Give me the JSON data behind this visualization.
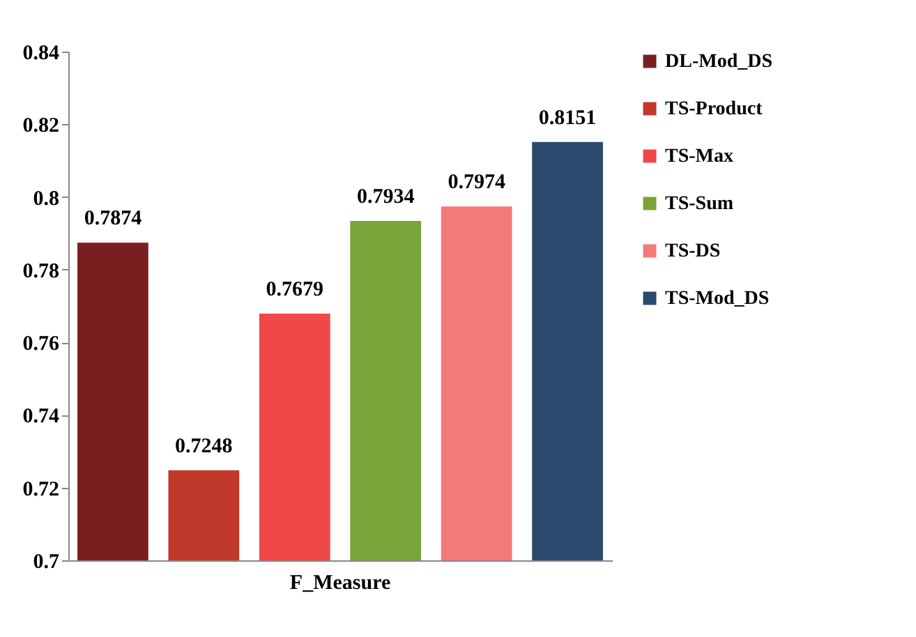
{
  "chart_data": {
    "type": "bar",
    "categories": [
      "F_Measure"
    ],
    "series": [
      {
        "name": "DL-Mod_DS",
        "color": "#7a1f1f",
        "values": [
          0.7874
        ]
      },
      {
        "name": "TS-Product",
        "color": "#c0392b",
        "values": [
          0.7248
        ]
      },
      {
        "name": "TS-Max",
        "color": "#f04848",
        "values": [
          0.7679
        ]
      },
      {
        "name": "TS-Sum",
        "color": "#7aa33a",
        "values": [
          0.7934
        ]
      },
      {
        "name": "TS-DS",
        "color": "#f47a7a",
        "values": [
          0.7974
        ]
      },
      {
        "name": "TS-Mod_DS",
        "color": "#2a4a6e",
        "values": [
          0.8151
        ]
      }
    ],
    "ylim": [
      0.7,
      0.84
    ],
    "yticks": [
      0.7,
      0.72,
      0.74,
      0.76,
      0.78,
      0.8,
      0.82,
      0.84
    ],
    "grid": false,
    "legend": "right",
    "data_labels": true
  }
}
